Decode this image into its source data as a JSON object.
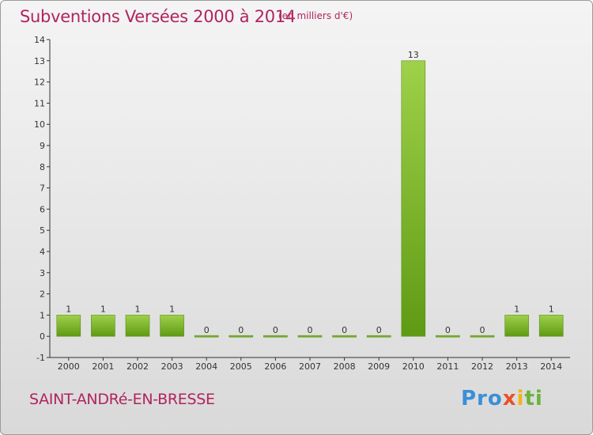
{
  "chart_data": {
    "type": "bar",
    "title": "Subventions Versées 2000 à 2014",
    "unit": "(en milliers d'€)",
    "categories": [
      "2000",
      "2001",
      "2002",
      "2003",
      "2004",
      "2005",
      "2006",
      "2007",
      "2008",
      "2009",
      "2010",
      "2011",
      "2012",
      "2013",
      "2014"
    ],
    "values": [
      1,
      1,
      1,
      1,
      0,
      0,
      0,
      0,
      0,
      0,
      13,
      0,
      0,
      1,
      1
    ],
    "ylim": [
      -1,
      14
    ],
    "yticks": [
      -1,
      0,
      1,
      2,
      3,
      4,
      5,
      6,
      7,
      8,
      9,
      10,
      11,
      12,
      13,
      14
    ],
    "grid": false,
    "bar_color": "#6aa51e"
  },
  "place_name": "SAINT-ANDRé-EN-BRESSE",
  "logo": {
    "text": "Proxiti",
    "parts": [
      "Pro",
      "x",
      "i",
      "ti"
    ]
  }
}
